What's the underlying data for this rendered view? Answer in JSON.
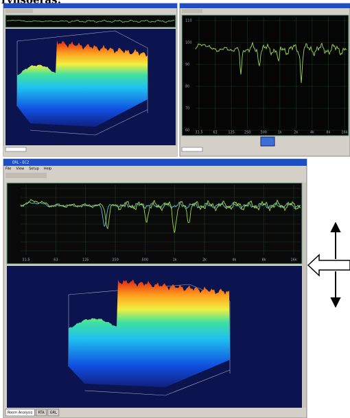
{
  "caption": "ryhsoeras:",
  "top_right_graph": {
    "y_labels": [
      "110",
      "100",
      "90",
      "80",
      "70",
      "60"
    ],
    "x_labels": [
      "31.5",
      "63",
      "125",
      "250",
      "500",
      "1k",
      "2k",
      "4k",
      "8k",
      "16k"
    ]
  },
  "main_window": {
    "title": "ERL - EC2",
    "menu": [
      "File",
      "View",
      "Setup",
      "Help"
    ],
    "graph_x_labels": [
      "31.5",
      "63",
      "125",
      "250",
      "500",
      "1k",
      "2k",
      "4k",
      "8k",
      "16k"
    ],
    "tabs": [
      "Room Analysis",
      "RTA",
      "GRL"
    ]
  }
}
